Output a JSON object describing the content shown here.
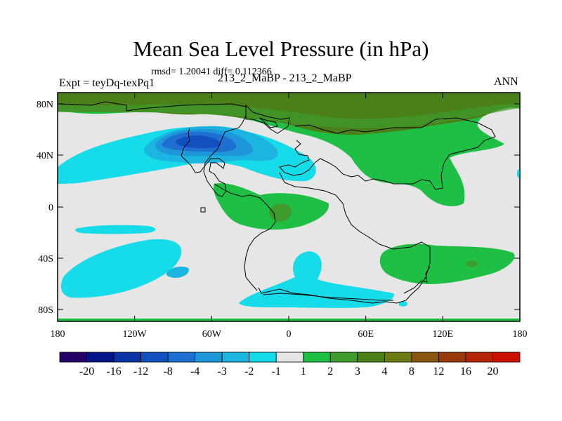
{
  "title": "Mean Sea Level Pressure (in hPa)",
  "stats": "rmsd= 1.20041 diff= 0.112366",
  "experiment": "Expt = teyDq-texPq1",
  "case": "213_2_MaBP - 213_2_MaBP",
  "season": "ANN",
  "lat_labels": [
    "80N",
    "40N",
    "0",
    "40S",
    "80S"
  ],
  "lon_labels": [
    "180",
    "120W",
    "60W",
    "0",
    "60E",
    "120E",
    "180"
  ],
  "colorbar": {
    "colors": [
      "#240066",
      "#061489",
      "#0a33a8",
      "#1250c0",
      "#1f6fd2",
      "#1d97d8",
      "#1cb4e0",
      "#16dbe8",
      "#e6e6e6",
      "#1fbf45",
      "#3f9b2b",
      "#4b7f1a",
      "#6b7a13",
      "#8a5510",
      "#9a3a0a",
      "#b32408",
      "#cc1100"
    ],
    "labels": [
      "-20",
      "-16",
      "-12",
      "-8",
      "-4",
      "-3",
      "-2",
      "-1",
      "1",
      "2",
      "3",
      "4",
      "8",
      "12",
      "16",
      "20"
    ]
  },
  "fill_colors": {
    "background": "#e6e6e6",
    "neg1": "#16dbe8",
    "neg2": "#1cb4e0",
    "neg3": "#1d97d8",
    "neg4": "#1f6fd2",
    "neg8": "#1250c0",
    "pos2": "#1fbf45",
    "pos3": "#3f9b2b",
    "pos4": "#4b7f1a",
    "pos8": "#6b7a13"
  }
}
